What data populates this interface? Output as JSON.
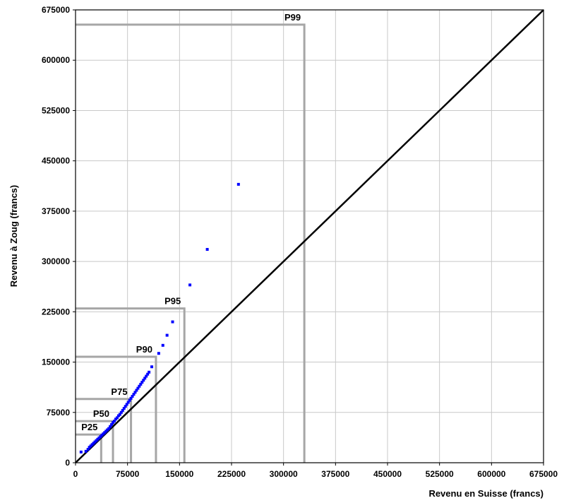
{
  "chart_data": {
    "type": "scatter",
    "title": "",
    "xlabel": "Revenu en Suisse (francs)",
    "ylabel": "Revenu à Zoug (francs)",
    "xlim": [
      0,
      675000
    ],
    "ylim": [
      0,
      675000
    ],
    "x_ticks": [
      0,
      75000,
      150000,
      225000,
      300000,
      375000,
      450000,
      525000,
      600000,
      675000
    ],
    "y_ticks": [
      0,
      75000,
      150000,
      225000,
      300000,
      375000,
      450000,
      525000,
      600000,
      675000
    ],
    "x_tick_labels": [
      "0",
      "75000",
      "150000",
      "225000",
      "300000",
      "375000",
      "450000",
      "525000",
      "600000",
      "675000"
    ],
    "y_tick_labels": [
      "0",
      "75000",
      "150000",
      "225000",
      "300000",
      "375000",
      "450000",
      "525000",
      "600000",
      "675000"
    ],
    "grid": true,
    "reference_line": {
      "x": [
        0,
        675000
      ],
      "y": [
        0,
        675000
      ],
      "color": "#000000"
    },
    "percentiles": [
      {
        "label": "P25",
        "x": 37000,
        "y": 42000
      },
      {
        "label": "P50",
        "x": 54000,
        "y": 62000
      },
      {
        "label": "P75",
        "x": 80000,
        "y": 95000
      },
      {
        "label": "P90",
        "x": 116000,
        "y": 158000
      },
      {
        "label": "P95",
        "x": 157000,
        "y": 230000
      },
      {
        "label": "P99",
        "x": 330000,
        "y": 653000
      }
    ],
    "series": [
      {
        "color": "#0000ff",
        "x": [
          8000,
          15000,
          18000,
          20000,
          22000,
          24000,
          26000,
          28000,
          30000,
          32000,
          34000,
          36000,
          38000,
          40000,
          42000,
          44000,
          46000,
          48000,
          50000,
          52000,
          54000,
          56000,
          58000,
          60000,
          62000,
          64000,
          66000,
          68000,
          70000,
          72000,
          74000,
          76000,
          78000,
          80000,
          82000,
          84000,
          86000,
          88000,
          90000,
          92000,
          94000,
          96000,
          98000,
          100000,
          102000,
          104000,
          106000,
          110000,
          120000,
          126000,
          132000,
          140000,
          165000,
          190000,
          235000
        ],
        "y": [
          16000,
          17000,
          20000,
          23000,
          25000,
          27000,
          29000,
          31000,
          33000,
          35000,
          37000,
          39000,
          41000,
          43000,
          45000,
          47000,
          49000,
          51000,
          54000,
          57000,
          60000,
          62000,
          65000,
          67000,
          70000,
          72000,
          75000,
          78000,
          81000,
          84000,
          87000,
          90000,
          93000,
          96000,
          99000,
          102000,
          105000,
          108000,
          111000,
          114000,
          117000,
          120000,
          123000,
          126000,
          129000,
          132000,
          135000,
          143000,
          163000,
          175000,
          190000,
          210000,
          265000,
          318000,
          415000
        ]
      }
    ]
  }
}
